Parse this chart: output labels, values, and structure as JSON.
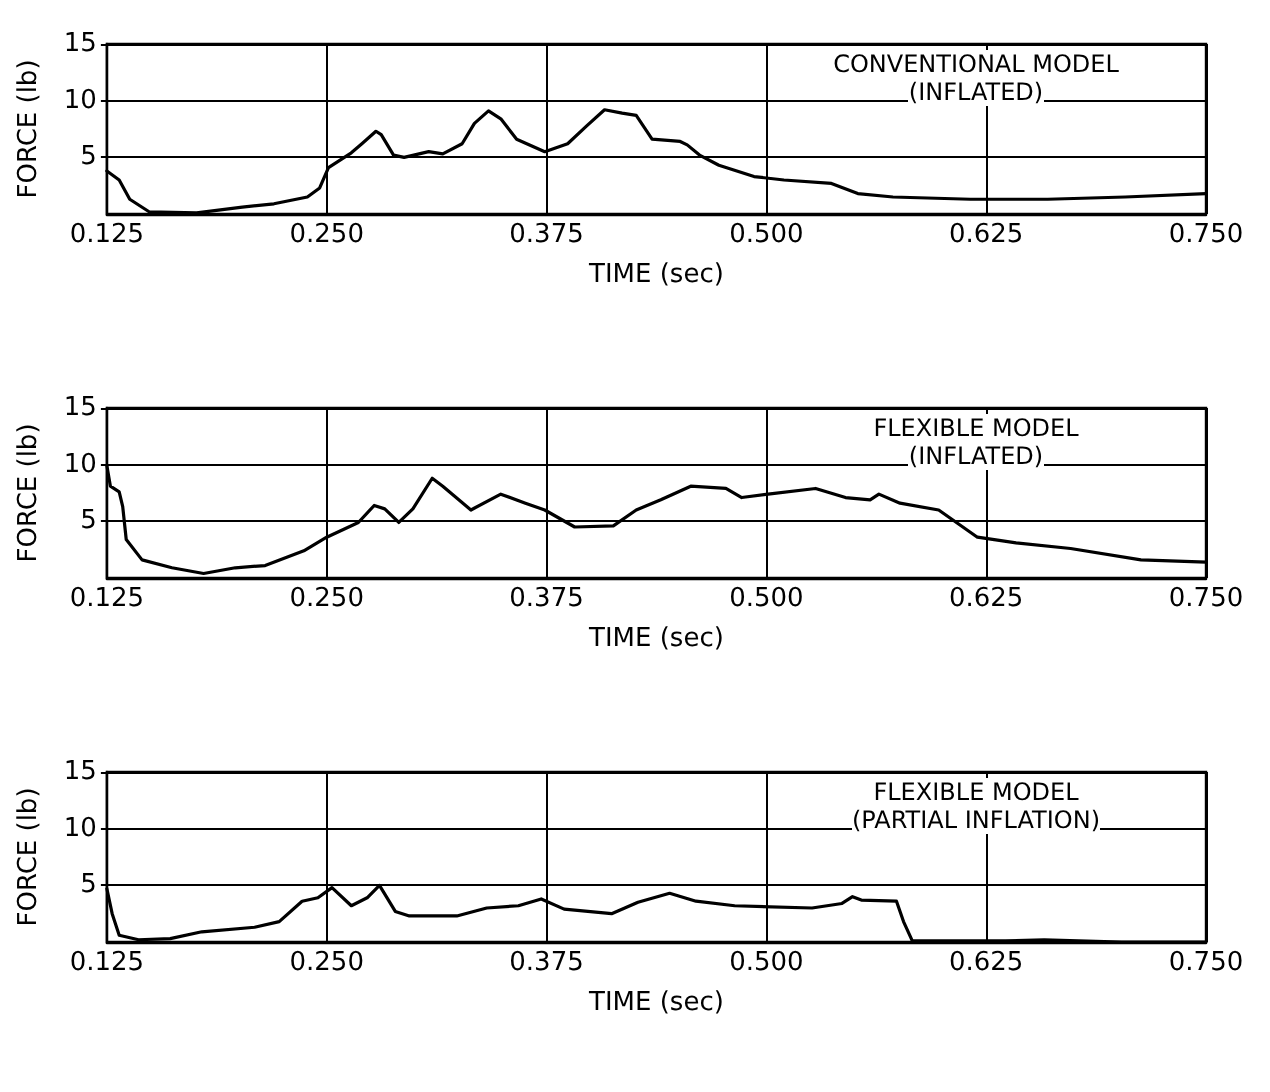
{
  "chart_data": [
    {
      "type": "line",
      "xlabel": "TIME (sec)",
      "ylabel": "FORCE (lb)",
      "annotations": [
        "CONVENTIONAL MODEL (INFLATED)"
      ],
      "xlim": [
        0.125,
        0.75
      ],
      "xticks": [
        0.125,
        {
          "value": 0.25,
          "label": "0.250"
        },
        0.375,
        {
          "value": 0.5,
          "label": "0.500"
        },
        0.625,
        {
          "value": 0.75,
          "label": "0.750"
        }
      ],
      "ylim": [
        0,
        15
      ],
      "yticks": [
        5,
        10,
        15
      ],
      "grid": true,
      "marker": "none",
      "line_style": "solid",
      "series": [
        {
          "color": "#000000",
          "x": [
            0.125,
            0.132,
            0.138,
            0.149,
            0.176,
            0.202,
            0.22,
            0.239,
            0.246,
            0.251,
            0.264,
            0.27,
            0.278,
            0.281,
            0.288,
            0.294,
            0.308,
            0.316,
            0.327,
            0.334,
            0.342,
            0.349,
            0.358,
            0.374,
            0.387,
            0.398,
            0.408,
            0.418,
            0.426,
            0.435,
            0.451,
            0.455,
            0.462,
            0.473,
            0.493,
            0.51,
            0.537,
            0.552,
            0.572,
            0.616,
            0.66,
            0.704,
            0.75
          ],
          "values": [
            3.8,
            3.0,
            1.3,
            0.2,
            0.1,
            0.6,
            0.9,
            1.5,
            2.3,
            4.1,
            5.4,
            6.2,
            7.3,
            7.0,
            5.2,
            5.0,
            5.5,
            5.3,
            6.2,
            8.0,
            9.1,
            8.4,
            6.6,
            5.5,
            6.2,
            7.8,
            9.2,
            8.9,
            8.7,
            6.6,
            6.4,
            6.1,
            5.2,
            4.3,
            3.3,
            3.0,
            2.7,
            1.8,
            1.5,
            1.3,
            1.3,
            1.5,
            1.8
          ]
        }
      ]
    },
    {
      "type": "line",
      "xlabel": "TIME (sec)",
      "ylabel": "FORCE (lb)",
      "annotations": [
        "FLEXIBLE MODEL (INFLATED)"
      ],
      "xlim": [
        0.125,
        0.75
      ],
      "xticks": [
        0.125,
        {
          "value": 0.25,
          "label": "0.250"
        },
        0.375,
        {
          "value": 0.5,
          "label": "0.500"
        },
        0.625,
        {
          "value": 0.75,
          "label": "0.750"
        }
      ],
      "ylim": [
        0,
        15
      ],
      "yticks": [
        5,
        10,
        15
      ],
      "grid": true,
      "marker": "none",
      "line_style": "solid",
      "series": [
        {
          "color": "#000000",
          "x": [
            0.125,
            0.127,
            0.132,
            0.134,
            0.136,
            0.145,
            0.162,
            0.18,
            0.198,
            0.215,
            0.237,
            0.25,
            0.268,
            0.277,
            0.283,
            0.291,
            0.299,
            0.31,
            0.316,
            0.332,
            0.349,
            0.363,
            0.374,
            0.391,
            0.413,
            0.426,
            0.44,
            0.457,
            0.477,
            0.486,
            0.501,
            0.528,
            0.545,
            0.559,
            0.564,
            0.576,
            0.598,
            0.62,
            0.642,
            0.673,
            0.713,
            0.75
          ],
          "values": [
            9.9,
            8.1,
            7.6,
            6.3,
            3.4,
            1.6,
            0.9,
            0.4,
            0.9,
            1.1,
            2.4,
            3.6,
            4.9,
            6.4,
            6.1,
            4.9,
            6.1,
            8.8,
            8.1,
            6.0,
            7.4,
            6.6,
            6.0,
            4.5,
            4.6,
            6.0,
            6.9,
            8.1,
            7.9,
            7.1,
            7.4,
            7.9,
            7.1,
            6.9,
            7.4,
            6.6,
            6.0,
            3.6,
            3.1,
            2.6,
            1.6,
            1.4
          ]
        }
      ]
    },
    {
      "type": "line",
      "xlabel": "TIME (sec)",
      "ylabel": "FORCE (lb)",
      "annotations": [
        "FLEXIBLE MODEL (PARTIAL INFLATION)"
      ],
      "xlim": [
        0.125,
        0.75
      ],
      "xticks": [
        0.125,
        {
          "value": 0.25,
          "label": "0.250"
        },
        0.375,
        {
          "value": 0.5,
          "label": "0.500"
        },
        0.625,
        {
          "value": 0.75,
          "label": "0.750"
        }
      ],
      "ylim": [
        0,
        15
      ],
      "yticks": [
        5,
        10,
        15
      ],
      "grid": true,
      "marker": "none",
      "line_style": "solid",
      "series": [
        {
          "color": "#000000",
          "x": [
            0.125,
            0.128,
            0.132,
            0.143,
            0.161,
            0.179,
            0.209,
            0.223,
            0.236,
            0.245,
            0.253,
            0.264,
            0.273,
            0.28,
            0.289,
            0.297,
            0.324,
            0.341,
            0.359,
            0.372,
            0.385,
            0.412,
            0.427,
            0.445,
            0.46,
            0.482,
            0.526,
            0.543,
            0.549,
            0.554,
            0.574,
            0.578,
            0.583,
            0.596,
            0.636,
            0.658,
            0.702,
            0.75
          ],
          "values": [
            4.7,
            2.5,
            0.6,
            0.2,
            0.3,
            0.9,
            1.3,
            1.8,
            3.6,
            3.9,
            4.8,
            3.2,
            3.9,
            5.0,
            2.7,
            2.3,
            2.3,
            3.0,
            3.2,
            3.8,
            2.9,
            2.5,
            3.5,
            4.3,
            3.6,
            3.2,
            3.0,
            3.4,
            4.0,
            3.7,
            3.6,
            1.8,
            0.1,
            0.1,
            0.1,
            0.2,
            0,
            0
          ]
        }
      ]
    }
  ]
}
